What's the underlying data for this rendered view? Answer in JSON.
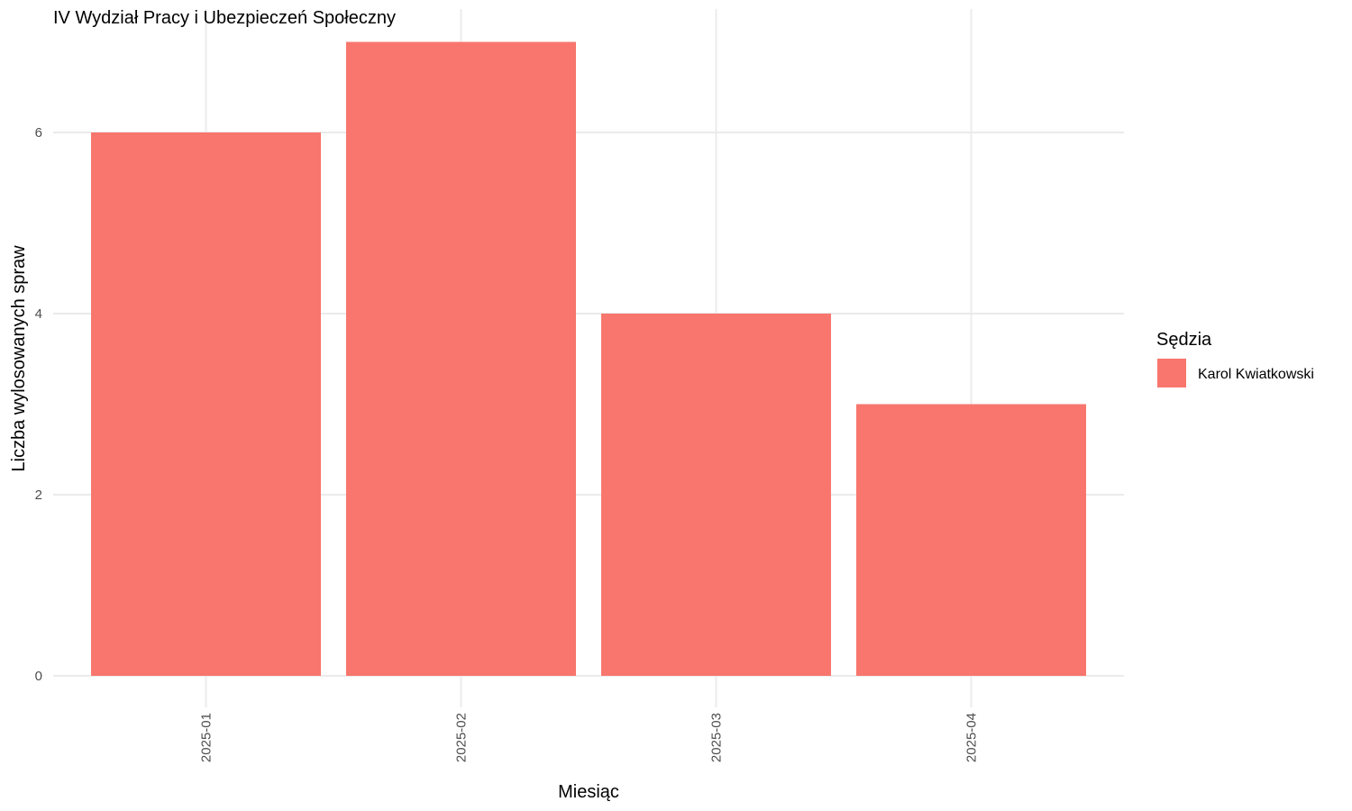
{
  "chart_data": {
    "type": "bar",
    "title": "IV Wydział Pracy i Ubezpieczeń Społeczny",
    "xlabel": "Miesiąc",
    "ylabel": "Liczba wylosowanych spraw",
    "categories": [
      "2025-01",
      "2025-02",
      "2025-03",
      "2025-04"
    ],
    "series": [
      {
        "name": "Karol Kwiatkowski",
        "values": [
          6,
          7,
          4,
          3
        ],
        "color": "#F8766D"
      }
    ],
    "ylim": [
      0,
      7
    ],
    "yticks": [
      0,
      2,
      4,
      6
    ],
    "grid": true,
    "legend": {
      "title": "Sędzia",
      "position": "right"
    }
  }
}
